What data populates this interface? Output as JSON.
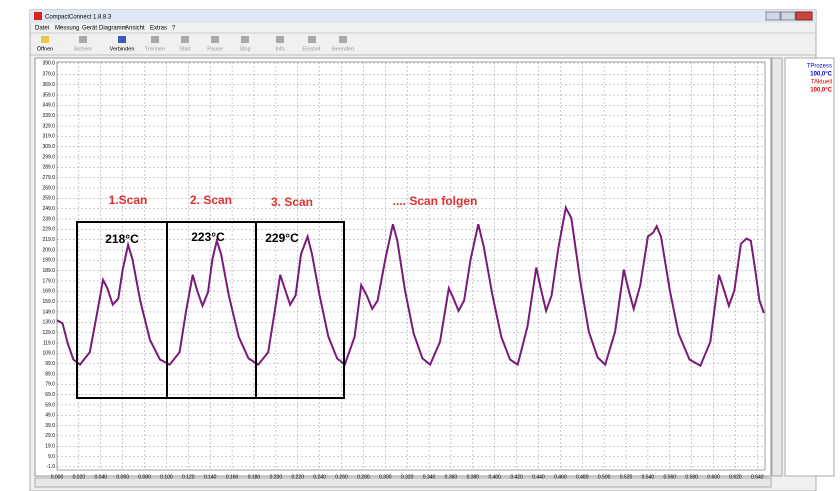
{
  "window": {
    "title": "CompactConnect 1.8.8.3"
  },
  "menu": [
    "Datei",
    "Messung",
    "Gerät",
    "Diagramm",
    "Ansicht",
    "Extras",
    "?"
  ],
  "toolbar": [
    {
      "label": "Öffnen",
      "enabled": true
    },
    {
      "label": "Sichern",
      "enabled": false
    },
    {
      "label": "Verbinden",
      "enabled": true
    },
    {
      "label": "Trennen",
      "enabled": false
    },
    {
      "label": "Start",
      "enabled": false
    },
    {
      "label": "Pause",
      "enabled": false
    },
    {
      "label": "Stop",
      "enabled": false
    },
    {
      "label": "Info",
      "enabled": false
    },
    {
      "label": "Einstell.",
      "enabled": false
    },
    {
      "label": "Beenden",
      "enabled": false
    }
  ],
  "legend_panel": [
    {
      "name": "TProzess",
      "value": "100,0°C",
      "color": "#0000cc"
    },
    {
      "name": "TAktuell",
      "value": "100,0°C",
      "color": "#dd0000"
    }
  ],
  "chart_data": {
    "type": "line",
    "x": [
      0.0,
      0.005,
      0.01,
      0.015,
      0.021,
      0.03,
      0.037,
      0.042,
      0.046,
      0.051,
      0.056,
      0.06,
      0.065,
      0.069,
      0.076,
      0.085,
      0.094,
      0.103,
      0.112,
      0.118,
      0.124,
      0.128,
      0.133,
      0.138,
      0.142,
      0.146,
      0.15,
      0.157,
      0.166,
      0.175,
      0.184,
      0.193,
      0.199,
      0.204,
      0.208,
      0.213,
      0.218,
      0.223,
      0.229,
      0.233,
      0.24,
      0.248,
      0.256,
      0.263,
      0.272,
      0.278,
      0.283,
      0.288,
      0.293,
      0.3,
      0.307,
      0.311,
      0.318,
      0.326,
      0.334,
      0.341,
      0.35,
      0.358,
      0.362,
      0.367,
      0.372,
      0.378,
      0.385,
      0.39,
      0.398,
      0.406,
      0.414,
      0.421,
      0.43,
      0.438,
      0.442,
      0.447,
      0.452,
      0.458,
      0.465,
      0.47,
      0.478,
      0.486,
      0.494,
      0.501,
      0.51,
      0.518,
      0.522,
      0.527,
      0.533,
      0.54,
      0.545,
      0.548,
      0.552,
      0.56,
      0.568,
      0.578,
      0.588,
      0.597,
      0.605,
      0.609,
      0.614,
      0.619,
      0.625,
      0.63,
      0.634,
      0.638,
      0.642,
      0.646
    ],
    "series": [
      {
        "color": "#7a1a7a",
        "values": [
          141,
          138,
          118,
          103,
          98,
          110,
          150,
          180,
          172,
          156,
          162,
          190,
          214,
          200,
          160,
          122,
          103,
          98,
          110,
          150,
          185,
          170,
          155,
          168,
          200,
          218,
          205,
          165,
          125,
          104,
          98,
          110,
          150,
          185,
          172,
          156,
          165,
          205,
          222,
          205,
          165,
          125,
          104,
          98,
          125,
          175,
          165,
          152,
          160,
          200,
          234,
          218,
          170,
          128,
          104,
          98,
          120,
          172,
          163,
          150,
          160,
          200,
          234,
          212,
          165,
          125,
          103,
          98,
          135,
          192,
          172,
          150,
          165,
          210,
          250,
          240,
          180,
          130,
          105,
          98,
          130,
          190,
          172,
          152,
          175,
          222,
          226,
          232,
          222,
          170,
          128,
          103,
          97,
          120,
          185,
          172,
          155,
          170,
          215,
          220,
          218,
          190,
          160,
          148
        ]
      }
    ],
    "xlim": [
      0,
      0.647
    ],
    "ylim": [
      -4,
      391
    ],
    "grid": true,
    "xticks": [
      {
        "value": 0,
        "label": "0.000"
      },
      {
        "value": 0.02,
        "label": "0.020"
      },
      {
        "value": 0.04,
        "label": "0.040"
      },
      {
        "value": 0.06,
        "label": "0.060"
      },
      {
        "value": 0.08,
        "label": "0.080"
      },
      {
        "value": 0.1,
        "label": "0.100"
      },
      {
        "value": 0.12,
        "label": "0.120"
      },
      {
        "value": 0.14,
        "label": "0.140"
      },
      {
        "value": 0.16,
        "label": "0.160"
      },
      {
        "value": 0.18,
        "label": "0.180"
      },
      {
        "value": 0.2,
        "label": "0.200"
      },
      {
        "value": 0.22,
        "label": "0.220"
      },
      {
        "value": 0.24,
        "label": "0.240"
      },
      {
        "value": 0.26,
        "label": "0.260"
      },
      {
        "value": 0.28,
        "label": "0.280"
      },
      {
        "value": 0.3,
        "label": "0.300"
      },
      {
        "value": 0.32,
        "label": "0.320"
      },
      {
        "value": 0.34,
        "label": "0.340"
      },
      {
        "value": 0.36,
        "label": "0.360"
      },
      {
        "value": 0.38,
        "label": "0.380"
      },
      {
        "value": 0.4,
        "label": "0.400"
      },
      {
        "value": 0.42,
        "label": "0.420"
      },
      {
        "value": 0.44,
        "label": "0.440"
      },
      {
        "value": 0.46,
        "label": "0.460"
      },
      {
        "value": 0.48,
        "label": "0.480"
      },
      {
        "value": 0.5,
        "label": "0.500"
      },
      {
        "value": 0.52,
        "label": "0.520"
      },
      {
        "value": 0.54,
        "label": "0.540"
      },
      {
        "value": 0.56,
        "label": "0.560"
      },
      {
        "value": 0.58,
        "label": "0.580"
      },
      {
        "value": 0.6,
        "label": "0.600"
      },
      {
        "value": 0.62,
        "label": "0.620"
      },
      {
        "value": 0.64,
        "label": "0.640"
      }
    ],
    "yticks": [
      {
        "value": 390,
        "label": "390.0"
      },
      {
        "value": 379,
        "label": "379.0"
      },
      {
        "value": 369,
        "label": "369.0"
      },
      {
        "value": 359,
        "label": "359.0"
      },
      {
        "value": 349,
        "label": "349.0"
      },
      {
        "value": 339,
        "label": "339.0"
      },
      {
        "value": 329,
        "label": "329.0"
      },
      {
        "value": 319,
        "label": "319.0"
      },
      {
        "value": 309,
        "label": "309.0"
      },
      {
        "value": 299,
        "label": "299.0"
      },
      {
        "value": 289,
        "label": "289.0"
      },
      {
        "value": 279,
        "label": "279.0"
      },
      {
        "value": 269,
        "label": "269.0"
      },
      {
        "value": 259,
        "label": "259.0"
      },
      {
        "value": 249,
        "label": "249.0"
      },
      {
        "value": 239,
        "label": "239.0"
      },
      {
        "value": 229,
        "label": "229.0"
      },
      {
        "value": 219,
        "label": "219.0"
      },
      {
        "value": 209,
        "label": "209.0"
      },
      {
        "value": 199,
        "label": "199.0"
      },
      {
        "value": 189,
        "label": "189.0"
      },
      {
        "value": 179,
        "label": "179.0"
      },
      {
        "value": 169,
        "label": "169.0"
      },
      {
        "value": 159,
        "label": "159.0"
      },
      {
        "value": 149,
        "label": "149.0"
      },
      {
        "value": 139,
        "label": "139.0"
      },
      {
        "value": 129,
        "label": "129.0"
      },
      {
        "value": 119,
        "label": "119.0"
      },
      {
        "value": 109,
        "label": "109.0"
      },
      {
        "value": 99,
        "label": "99.0"
      },
      {
        "value": 89,
        "label": "89.0"
      },
      {
        "value": 79,
        "label": "79.0"
      },
      {
        "value": 69,
        "label": "69.0"
      },
      {
        "value": 59,
        "label": "59.0"
      },
      {
        "value": 49,
        "label": "49.0"
      },
      {
        "value": 39,
        "label": "39.0"
      },
      {
        "value": 29,
        "label": "29.0"
      },
      {
        "value": 19,
        "label": "19.0"
      },
      {
        "value": 9,
        "label": "9.0"
      },
      {
        "value": -1,
        "label": "-1.0"
      }
    ],
    "annotations": [
      "1.Scan",
      "2. Scan",
      "3. Scan",
      ".... Scan folgen",
      "218°C",
      "223°C",
      "229°C"
    ]
  }
}
